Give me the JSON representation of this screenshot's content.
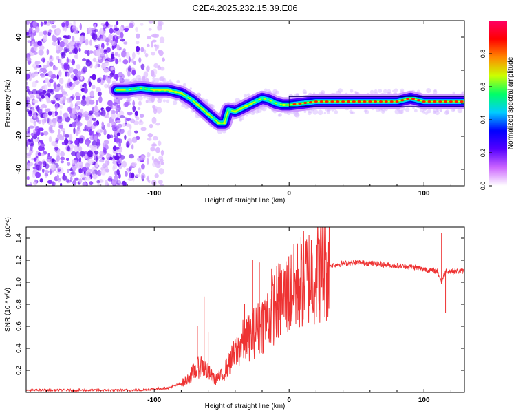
{
  "title": "C2E4.2025.232.15.39.E06",
  "chart_data": [
    {
      "type": "heatmap",
      "name": "spectrogram",
      "xlabel": "Height of straight line (km)",
      "ylabel": "Frequency (Hz)",
      "xlim": [
        -195,
        130
      ],
      "ylim": [
        -50,
        50
      ],
      "xticks": [
        -100,
        0,
        100
      ],
      "yticks": [
        -40,
        -20,
        0,
        20,
        40
      ],
      "colorbar": {
        "label": "Normalized spectral amplitude",
        "range": [
          0,
          1
        ],
        "ticks": [
          0.0,
          0.2,
          0.4,
          0.6,
          0.8
        ],
        "tick_labels": [
          "0.0",
          "0.2",
          "0.4",
          "0.6",
          "0.8"
        ],
        "colors": [
          "#ffffff",
          "#cc66ff",
          "#5500ff",
          "#0000ff",
          "#00ccff",
          "#00ff66",
          "#ccff00",
          "#ff8800",
          "#ff0000",
          "#ff0066"
        ]
      },
      "ridge": {
        "x": [
          -128,
          -120,
          -110,
          -100,
          -90,
          -80,
          -72,
          -65,
          -58,
          -52,
          -48,
          -45,
          -40,
          -35,
          -30,
          -25,
          -20,
          -15,
          -10,
          -5,
          0,
          10,
          20,
          40,
          60,
          80,
          90,
          100,
          115,
          130
        ],
        "y": [
          8,
          8,
          9,
          8,
          8,
          6,
          2,
          -3,
          -8,
          -12,
          -12,
          -4,
          -5,
          -3,
          -1,
          1,
          3,
          2,
          0,
          -1,
          -1,
          0,
          1,
          1,
          1,
          1,
          3,
          1,
          1,
          1
        ]
      },
      "noise_region_x": [
        -195,
        -105
      ]
    },
    {
      "type": "line",
      "name": "snr",
      "xlabel": "Height of straight line (km)",
      "ylabel": "SNR (10 * v/v)",
      "y_multiplier": "(x10^4)",
      "xlim": [
        -195,
        130
      ],
      "ylim": [
        0,
        1.5
      ],
      "xticks": [
        -100,
        0,
        100
      ],
      "yticks": [
        0.2,
        0.4,
        0.6,
        0.8,
        1.0,
        1.2,
        1.4
      ],
      "ytick_labels": [
        "0.2",
        "0.4",
        "0.6",
        "0.8",
        "1.0",
        "1.2",
        "1.4"
      ],
      "color": "#ee3333",
      "envelope_x": [
        -195,
        -110,
        -90,
        -80,
        -75,
        -70,
        -65,
        -60,
        -55,
        -50,
        -45,
        -40,
        -35,
        -30,
        -25,
        -20,
        -15,
        -10,
        -5,
        0,
        5,
        10,
        20,
        30,
        40,
        50,
        60,
        70,
        80,
        90,
        100,
        110,
        113,
        116,
        120,
        130
      ],
      "envelope_y": [
        0.02,
        0.02,
        0.04,
        0.08,
        0.12,
        0.2,
        0.25,
        0.18,
        0.12,
        0.15,
        0.25,
        0.35,
        0.45,
        0.5,
        0.55,
        0.62,
        0.7,
        0.8,
        0.85,
        0.9,
        0.95,
        1.02,
        1.1,
        1.15,
        1.17,
        1.18,
        1.17,
        1.16,
        1.15,
        1.14,
        1.12,
        1.1,
        1.0,
        1.1,
        1.1,
        1.1
      ],
      "spikes": [
        {
          "x": -63,
          "y": 0.87
        },
        {
          "x": -68,
          "y": 0.6
        },
        {
          "x": -60,
          "y": 0.55
        },
        {
          "x": -33,
          "y": 0.8
        },
        {
          "x": -27,
          "y": 1.2
        },
        {
          "x": -22,
          "y": 1.18
        },
        {
          "x": -13,
          "y": 1.12
        },
        {
          "x": -8,
          "y": 1.05
        },
        {
          "x": -3,
          "y": 1.1
        },
        {
          "x": 113,
          "y": 1.45
        },
        {
          "x": 116,
          "y": 0.72
        }
      ]
    }
  ]
}
